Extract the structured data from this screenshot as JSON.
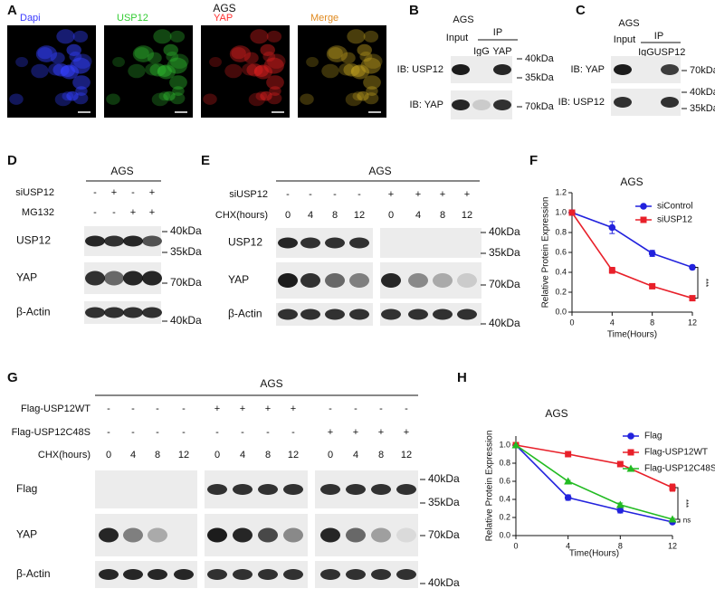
{
  "panels": {
    "A": {
      "letter": "A",
      "title": "AGS",
      "channels": [
        "Dapi",
        "USP12",
        "YAP",
        "Merge"
      ]
    },
    "B": {
      "letter": "B",
      "title": "AGS",
      "input": "Input",
      "ip": "IP",
      "lanes": [
        "IgG",
        "YAP"
      ],
      "rows": [
        "IB: USP12",
        "IB: YAP"
      ],
      "markers": [
        "40kDa",
        "35kDa",
        "70kDa"
      ]
    },
    "C": {
      "letter": "C",
      "title": "AGS",
      "input": "Input",
      "ip": "IP",
      "lanes": [
        "IgG",
        "USP12"
      ],
      "rows": [
        "IB: YAP",
        "IB: USP12"
      ],
      "markers": [
        "70kDa",
        "40kDa",
        "35kDa"
      ]
    },
    "D": {
      "letter": "D",
      "title": "AGS",
      "conditions": [
        {
          "label": "siUSP12",
          "signs": [
            "-",
            "+",
            "-",
            "+"
          ]
        },
        {
          "label": "MG132",
          "signs": [
            "-",
            "-",
            "+",
            "+"
          ]
        }
      ],
      "rows": [
        "USP12",
        "YAP",
        "β-Actin"
      ],
      "markers": [
        "40kDa",
        "35kDa",
        "70kDa",
        "40kDa"
      ]
    },
    "E": {
      "letter": "E",
      "title": "AGS",
      "conditions": [
        {
          "label": "siUSP12",
          "signs": [
            "-",
            "-",
            "-",
            "-",
            "+",
            "+",
            "+",
            "+"
          ]
        },
        {
          "label": "CHX(hours)",
          "signs": [
            0,
            4,
            8,
            12,
            0,
            4,
            8,
            12
          ]
        }
      ],
      "rows": [
        "USP12",
        "YAP",
        "β-Actin"
      ],
      "markers": [
        "40kDa",
        "35kDa",
        "70kDa",
        "40kDa"
      ]
    },
    "G": {
      "letter": "G",
      "title": "AGS",
      "conditions": [
        {
          "label": "Flag-USP12WT",
          "signs": [
            "-",
            "-",
            "-",
            "-",
            "+",
            "+",
            "+",
            "+",
            "-",
            "-",
            "-",
            "-"
          ]
        },
        {
          "label": "Flag-USP12C48S",
          "signs": [
            "-",
            "-",
            "-",
            "-",
            "-",
            "-",
            "-",
            "-",
            "+",
            "+",
            "+",
            "+"
          ]
        },
        {
          "label": "CHX(hours)",
          "signs": [
            0,
            4,
            8,
            12,
            0,
            4,
            8,
            12,
            0,
            4,
            8,
            12
          ]
        }
      ],
      "rows": [
        "Flag",
        "YAP",
        "β-Actin"
      ],
      "markers": [
        "40kDa",
        "35kDa",
        "70kDa",
        "40kDa"
      ]
    },
    "F": {
      "letter": "F"
    },
    "H": {
      "letter": "H"
    }
  },
  "chart_data": [
    {
      "type": "line",
      "title": "AGS",
      "x_label": "Time(Hours)",
      "y_label": "Relative Protein Expression",
      "x": [
        0,
        4,
        8,
        12
      ],
      "xlim": [
        0,
        12
      ],
      "xticks": [
        0,
        4,
        8,
        12
      ],
      "ylim": [
        0,
        1.2
      ],
      "yticks": [
        {
          "value": 0,
          "label": "0.0"
        },
        0.2,
        0.4,
        0.6,
        0.8,
        {
          "value": 1,
          "label": "1.0"
        },
        1.2
      ],
      "series": [
        {
          "name": "siControl",
          "color": "#2222dd",
          "marker": "circle",
          "values": [
            1.0,
            0.85,
            0.59,
            0.45
          ],
          "errors": [
            0,
            0.06,
            0.03,
            0.02
          ]
        },
        {
          "name": "siUSP12",
          "color": "#e8202a",
          "marker": "square",
          "values": [
            1.0,
            0.42,
            0.26,
            0.14
          ],
          "errors": [
            0,
            0.03,
            0.01,
            0.01
          ]
        }
      ],
      "annotations": [
        "***"
      ]
    },
    {
      "type": "line",
      "title": "AGS",
      "x_label": "Time(Hours)",
      "y_label": "Relative Protein Expression",
      "x": [
        0,
        4,
        8,
        12
      ],
      "xlim": [
        0,
        12
      ],
      "xticks": [
        0,
        4,
        8,
        12
      ],
      "ylim": [
        0,
        1.1
      ],
      "yticks": [
        {
          "value": 0,
          "label": "0.0"
        },
        0.2,
        0.4,
        0.6,
        0.8,
        {
          "value": 1,
          "label": "1.0"
        }
      ],
      "series": [
        {
          "name": "Flag",
          "color": "#2222dd",
          "marker": "circle",
          "values": [
            1.0,
            0.42,
            0.28,
            0.15
          ],
          "errors": [
            0,
            0.03,
            0.03,
            0.01
          ]
        },
        {
          "name": "Flag-USP12WT",
          "color": "#e8202a",
          "marker": "square",
          "values": [
            1.0,
            0.9,
            0.79,
            0.53
          ],
          "errors": [
            0,
            0.02,
            0.03,
            0.04
          ]
        },
        {
          "name": "Flag-USP12C48S",
          "color": "#22bb22",
          "marker": "triangle",
          "values": [
            1.0,
            0.6,
            0.34,
            0.18
          ],
          "errors": [
            0,
            0.01,
            0.02,
            0.01
          ]
        }
      ],
      "annotations": [
        "***",
        "ns"
      ]
    }
  ]
}
